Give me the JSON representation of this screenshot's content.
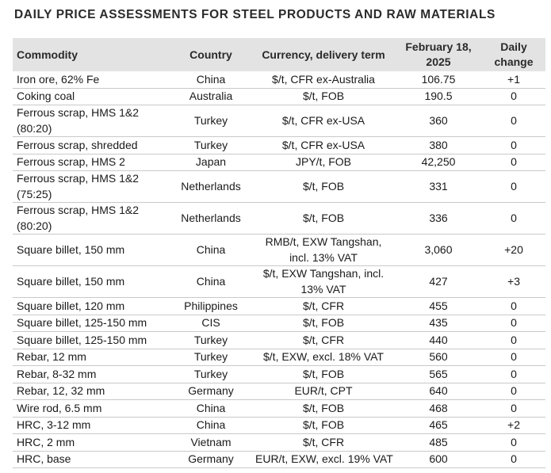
{
  "title": "DAILY PRICE ASSESSMENTS FOR STEEL PRODUCTS AND RAW MATERIALS",
  "headers": {
    "commodity": "Commodity",
    "country": "Country",
    "currency": "Currency, delivery term",
    "date": "February 18, 2025",
    "change": "Daily change"
  },
  "rows": [
    {
      "commodity": "Iron ore, 62% Fe",
      "country": "China",
      "currency": "$/t, CFR ex-Australia",
      "price": "106.75",
      "change": "+1"
    },
    {
      "commodity": "Coking coal",
      "country": "Australia",
      "currency": "$/t, FOB",
      "price": "190.5",
      "change": "0"
    },
    {
      "commodity": "Ferrous scrap, HMS 1&2 (80:20)",
      "country": "Turkey",
      "currency": "$/t, CFR ex-USA",
      "price": "360",
      "change": "0"
    },
    {
      "commodity": "Ferrous scrap, shredded",
      "country": "Turkey",
      "currency": "$/t, CFR ex-USA",
      "price": "380",
      "change": "0"
    },
    {
      "commodity": "Ferrous scrap, HMS 2",
      "country": "Japan",
      "currency": "JPY/t, FOB",
      "price": "42,250",
      "change": "0"
    },
    {
      "commodity": "Ferrous scrap, HMS 1&2 (75:25)",
      "country": "Netherlands",
      "currency": "$/t, FOB",
      "price": "331",
      "change": "0"
    },
    {
      "commodity": "Ferrous scrap, HMS 1&2 (80:20)",
      "country": "Netherlands",
      "currency": "$/t, FOB",
      "price": "336",
      "change": "0"
    },
    {
      "commodity": "Square billet, 150 mm",
      "country": "China",
      "currency": "RMB/t, EXW Tangshan, incl. 13% VAT",
      "price": "3,060",
      "change": "+20"
    },
    {
      "commodity": "Square billet, 150 mm",
      "country": "China",
      "currency": "$/t, EXW Tangshan, incl. 13% VAT",
      "price": "427",
      "change": "+3"
    },
    {
      "commodity": "Square billet, 120 mm",
      "country": "Philippines",
      "currency": "$/t, CFR",
      "price": "455",
      "change": "0"
    },
    {
      "commodity": "Square billet, 125-150 mm",
      "country": "CIS",
      "currency": "$/t, FOB",
      "price": "435",
      "change": "0"
    },
    {
      "commodity": "Square billet, 125-150 mm",
      "country": "Turkey",
      "currency": "$/t, CFR",
      "price": "440",
      "change": "0"
    },
    {
      "commodity": "Rebar, 12 mm",
      "country": "Turkey",
      "currency": "$/t, EXW, excl. 18% VAT",
      "price": "560",
      "change": "0"
    },
    {
      "commodity": "Rebar, 8-32 mm",
      "country": "Turkey",
      "currency": "$/t, FOB",
      "price": "565",
      "change": "0"
    },
    {
      "commodity": "Rebar, 12, 32 mm",
      "country": "Germany",
      "currency": "EUR/t, CPT",
      "price": "640",
      "change": "0"
    },
    {
      "commodity": "Wire rod, 6.5 mm",
      "country": "China",
      "currency": "$/t, FOB",
      "price": "468",
      "change": "0"
    },
    {
      "commodity": "HRC, 3-12 mm",
      "country": "China",
      "currency": "$/t, FOB",
      "price": "465",
      "change": "+2"
    },
    {
      "commodity": "HRC, 2 mm",
      "country": "Vietnam",
      "currency": "$/t, CFR",
      "price": "485",
      "change": "0"
    },
    {
      "commodity": "HRC, base",
      "country": "Germany",
      "currency": "EUR/t, EXW, excl. 19% VAT",
      "price": "600",
      "change": "0"
    }
  ]
}
